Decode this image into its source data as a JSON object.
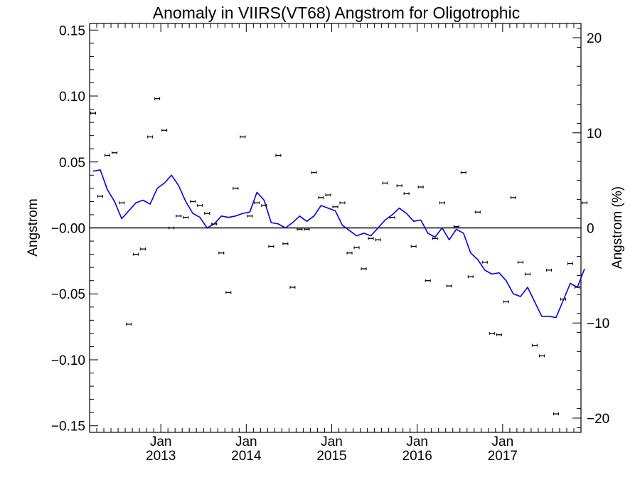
{
  "chart_data": {
    "type": "scatter",
    "title": "Anomaly in VIIRS(VT68) Angstrom for Oligotrophic",
    "xlabel": "",
    "ylabel": "Angstrom",
    "y2label": "Angstrom (%)",
    "xlim": [
      "2012-03-01",
      "2017-12-01"
    ],
    "ylim": [
      -0.155,
      0.155
    ],
    "y2lim": [
      -21.5,
      21.5
    ],
    "yticks": [
      -0.15,
      -0.1,
      -0.05,
      0.0,
      0.05,
      0.1,
      0.15
    ],
    "ytick_labels": [
      "−0.15",
      "−0.10",
      "−0.05",
      "−0.00",
      "0.05",
      "0.10",
      "0.15"
    ],
    "y2ticks": [
      -20,
      -10,
      0,
      10,
      20
    ],
    "y2tick_labels": [
      "−20",
      "−10",
      "0",
      "10",
      "20"
    ],
    "xticks": [
      {
        "date": "2013-01-01",
        "month": "Jan",
        "year": "2013"
      },
      {
        "date": "2014-01-01",
        "month": "Jan",
        "year": "2014"
      },
      {
        "date": "2015-01-01",
        "month": "Jan",
        "year": "2015"
      },
      {
        "date": "2016-01-01",
        "month": "Jan",
        "year": "2016"
      },
      {
        "date": "2017-01-01",
        "month": "Jan",
        "year": "2017"
      }
    ],
    "grid": false,
    "reference_line_y": 0,
    "colors": {
      "points": "#000000",
      "line": "#0000dd",
      "zero_line": "#000000"
    },
    "series": [
      {
        "kind": "points",
        "x": [
          "2012-03",
          "2012-04",
          "2012-05",
          "2012-06",
          "2012-07",
          "2012-08",
          "2012-09",
          "2012-10",
          "2012-11",
          "2012-12",
          "2013-01",
          "2013-02",
          "2013-03",
          "2013-04",
          "2013-05",
          "2013-06",
          "2013-07",
          "2013-08",
          "2013-09",
          "2013-10",
          "2013-11",
          "2013-12",
          "2014-01",
          "2014-02",
          "2014-03",
          "2014-04",
          "2014-05",
          "2014-06",
          "2014-07",
          "2014-08",
          "2014-09",
          "2014-10",
          "2014-11",
          "2014-12",
          "2015-01",
          "2015-02",
          "2015-03",
          "2015-04",
          "2015-05",
          "2015-06",
          "2015-07",
          "2015-08",
          "2015-09",
          "2015-10",
          "2015-11",
          "2015-12",
          "2016-01",
          "2016-02",
          "2016-03",
          "2016-04",
          "2016-05",
          "2016-06",
          "2016-07",
          "2016-08",
          "2016-09",
          "2016-10",
          "2016-11",
          "2016-12",
          "2017-01",
          "2017-02",
          "2017-03",
          "2017-04",
          "2017-05",
          "2017-06",
          "2017-07",
          "2017-08",
          "2017-09",
          "2017-10",
          "2017-11",
          "2017-12"
        ],
        "y": [
          0.087,
          0.024,
          0.055,
          0.057,
          0.019,
          -0.073,
          -0.02,
          -0.016,
          0.069,
          0.098,
          0.074,
          0.0,
          0.009,
          0.008,
          0.02,
          0.017,
          0.011,
          0.003,
          -0.019,
          -0.049,
          0.03,
          0.069,
          0.009,
          0.019,
          0.017,
          -0.014,
          0.055,
          -0.012,
          -0.045,
          -0.001,
          -0.001,
          0.042,
          0.023,
          0.025,
          0.016,
          0.019,
          -0.019,
          -0.015,
          -0.031,
          -0.008,
          -0.009,
          0.034,
          0.008,
          0.032,
          0.026,
          -0.014,
          0.031,
          -0.04,
          -0.008,
          0.019,
          -0.044,
          0.001,
          0.042,
          -0.037,
          0.012,
          -0.026,
          -0.08,
          -0.081,
          -0.056,
          0.023,
          -0.026,
          -0.035,
          -0.089,
          -0.097,
          -0.032,
          -0.141,
          -0.054,
          -0.027,
          -0.045,
          0.019
        ]
      },
      {
        "kind": "line",
        "x": [
          "2012-03",
          "2012-04",
          "2012-05",
          "2012-06",
          "2012-07",
          "2012-08",
          "2012-09",
          "2012-10",
          "2012-11",
          "2012-12",
          "2013-01",
          "2013-02",
          "2013-03",
          "2013-04",
          "2013-05",
          "2013-06",
          "2013-07",
          "2013-08",
          "2013-09",
          "2013-10",
          "2013-11",
          "2013-12",
          "2014-01",
          "2014-02",
          "2014-03",
          "2014-04",
          "2014-05",
          "2014-06",
          "2014-07",
          "2014-08",
          "2014-09",
          "2014-10",
          "2014-11",
          "2014-12",
          "2015-01",
          "2015-02",
          "2015-03",
          "2015-04",
          "2015-05",
          "2015-06",
          "2015-07",
          "2015-08",
          "2015-09",
          "2015-10",
          "2015-11",
          "2015-12",
          "2016-01",
          "2016-02",
          "2016-03",
          "2016-04",
          "2016-05",
          "2016-06",
          "2016-07",
          "2016-08",
          "2016-09",
          "2016-10",
          "2016-11",
          "2016-12",
          "2017-01",
          "2017-02",
          "2017-03",
          "2017-04",
          "2017-05",
          "2017-06",
          "2017-07",
          "2017-08",
          "2017-09",
          "2017-10",
          "2017-11",
          "2017-12"
        ],
        "y": [
          0.043,
          0.044,
          0.029,
          0.02,
          0.007,
          0.013,
          0.019,
          0.021,
          0.018,
          0.03,
          0.034,
          0.04,
          0.032,
          0.02,
          0.011,
          0.008,
          0.0,
          0.003,
          0.009,
          0.008,
          0.009,
          0.011,
          0.012,
          0.027,
          0.021,
          0.004,
          0.003,
          0.0,
          0.004,
          0.009,
          0.005,
          0.009,
          0.017,
          0.015,
          0.013,
          0.002,
          -0.002,
          -0.006,
          -0.004,
          -0.006,
          0.0,
          0.006,
          0.01,
          0.015,
          0.011,
          0.005,
          0.006,
          -0.004,
          -0.007,
          0.0,
          -0.009,
          -0.001,
          -0.004,
          -0.019,
          -0.024,
          -0.032,
          -0.035,
          -0.034,
          -0.04,
          -0.05,
          -0.052,
          -0.045,
          -0.056,
          -0.067,
          -0.067,
          -0.068,
          -0.055,
          -0.042,
          -0.045,
          -0.031
        ]
      }
    ]
  }
}
